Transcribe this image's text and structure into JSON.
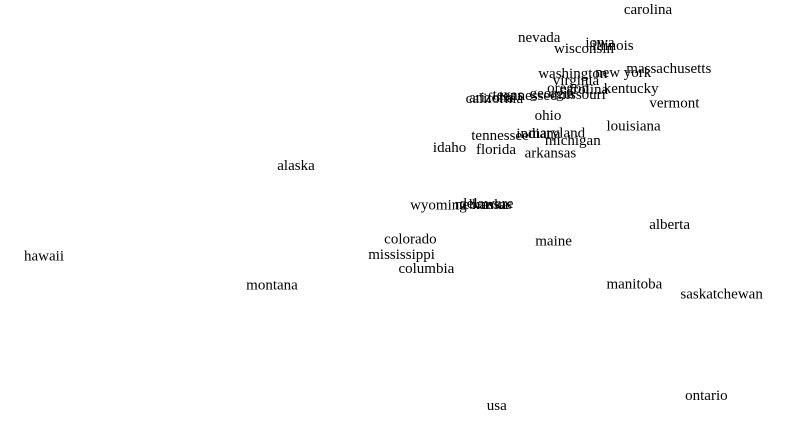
{
  "chart_data": {
    "type": "scatter",
    "title": "",
    "xlabel": "",
    "ylabel": "",
    "marker": "text-label",
    "axes_visible": false,
    "grid": false,
    "legend": "none",
    "xlim": [
      0,
      100
    ],
    "ylim": [
      0,
      100
    ],
    "points": [
      {
        "label": "carolina",
        "x": 81.0,
        "y": 97.7
      },
      {
        "label": "nevada",
        "x": 67.4,
        "y": 91.2
      },
      {
        "label": "iowa",
        "x": 75.0,
        "y": 90.1
      },
      {
        "label": "illinois",
        "x": 76.6,
        "y": 89.4
      },
      {
        "label": "wisconsin",
        "x": 73.0,
        "y": 88.7
      },
      {
        "label": "massachusetts",
        "x": 83.6,
        "y": 84.1
      },
      {
        "label": "washington",
        "x": 71.6,
        "y": 82.9
      },
      {
        "label": "new york",
        "x": 77.9,
        "y": 83.2
      },
      {
        "label": "virginia",
        "x": 72.0,
        "y": 81.3
      },
      {
        "label": "carolina",
        "x": 73.0,
        "y": 79.3
      },
      {
        "label": "oregon",
        "x": 71.0,
        "y": 79.6
      },
      {
        "label": "kentucky",
        "x": 78.9,
        "y": 79.5
      },
      {
        "label": "georgia",
        "x": 69.0,
        "y": 78.3
      },
      {
        "label": "missouri",
        "x": 72.5,
        "y": 78.1
      },
      {
        "label": "tennessee",
        "x": 66.0,
        "y": 77.9
      },
      {
        "label": "texas",
        "x": 63.5,
        "y": 78.0
      },
      {
        "label": "california",
        "x": 61.8,
        "y": 77.2
      },
      {
        "label": "arizona",
        "x": 61.4,
        "y": 77.4
      },
      {
        "label": "vermont",
        "x": 84.3,
        "y": 76.1
      },
      {
        "label": "ohio",
        "x": 68.5,
        "y": 73.3
      },
      {
        "label": "louisiana",
        "x": 79.2,
        "y": 70.8
      },
      {
        "label": "maryland",
        "x": 69.6,
        "y": 69.2
      },
      {
        "label": "indiana",
        "x": 67.3,
        "y": 69.1
      },
      {
        "label": "tennessee",
        "x": 62.5,
        "y": 68.7
      },
      {
        "label": "michigan",
        "x": 71.6,
        "y": 67.5
      },
      {
        "label": "idaho",
        "x": 56.2,
        "y": 65.9
      },
      {
        "label": "florida",
        "x": 62.0,
        "y": 65.4
      },
      {
        "label": "arkansas",
        "x": 68.8,
        "y": 64.6
      },
      {
        "label": "alaska",
        "x": 37.0,
        "y": 61.7
      },
      {
        "label": "delaware",
        "x": 60.8,
        "y": 53.0
      },
      {
        "label": "kansas",
        "x": 61.5,
        "y": 52.8
      },
      {
        "label": "nebraska",
        "x": 60.2,
        "y": 52.8
      },
      {
        "label": "wyoming",
        "x": 54.8,
        "y": 52.6
      },
      {
        "label": "alberta",
        "x": 83.7,
        "y": 48.2
      },
      {
        "label": "colorado",
        "x": 51.3,
        "y": 44.8
      },
      {
        "label": "maine",
        "x": 69.2,
        "y": 44.3
      },
      {
        "label": "mississippi",
        "x": 50.2,
        "y": 41.3
      },
      {
        "label": "hawaii",
        "x": 5.5,
        "y": 40.9
      },
      {
        "label": "columbia",
        "x": 53.3,
        "y": 38.0
      },
      {
        "label": "montana",
        "x": 34.0,
        "y": 34.2
      },
      {
        "label": "manitoba",
        "x": 79.3,
        "y": 34.4
      },
      {
        "label": "saskatchewan",
        "x": 90.2,
        "y": 32.1
      },
      {
        "label": "ontario",
        "x": 88.3,
        "y": 8.8
      },
      {
        "label": "usa",
        "x": 62.1,
        "y": 6.5
      }
    ]
  }
}
